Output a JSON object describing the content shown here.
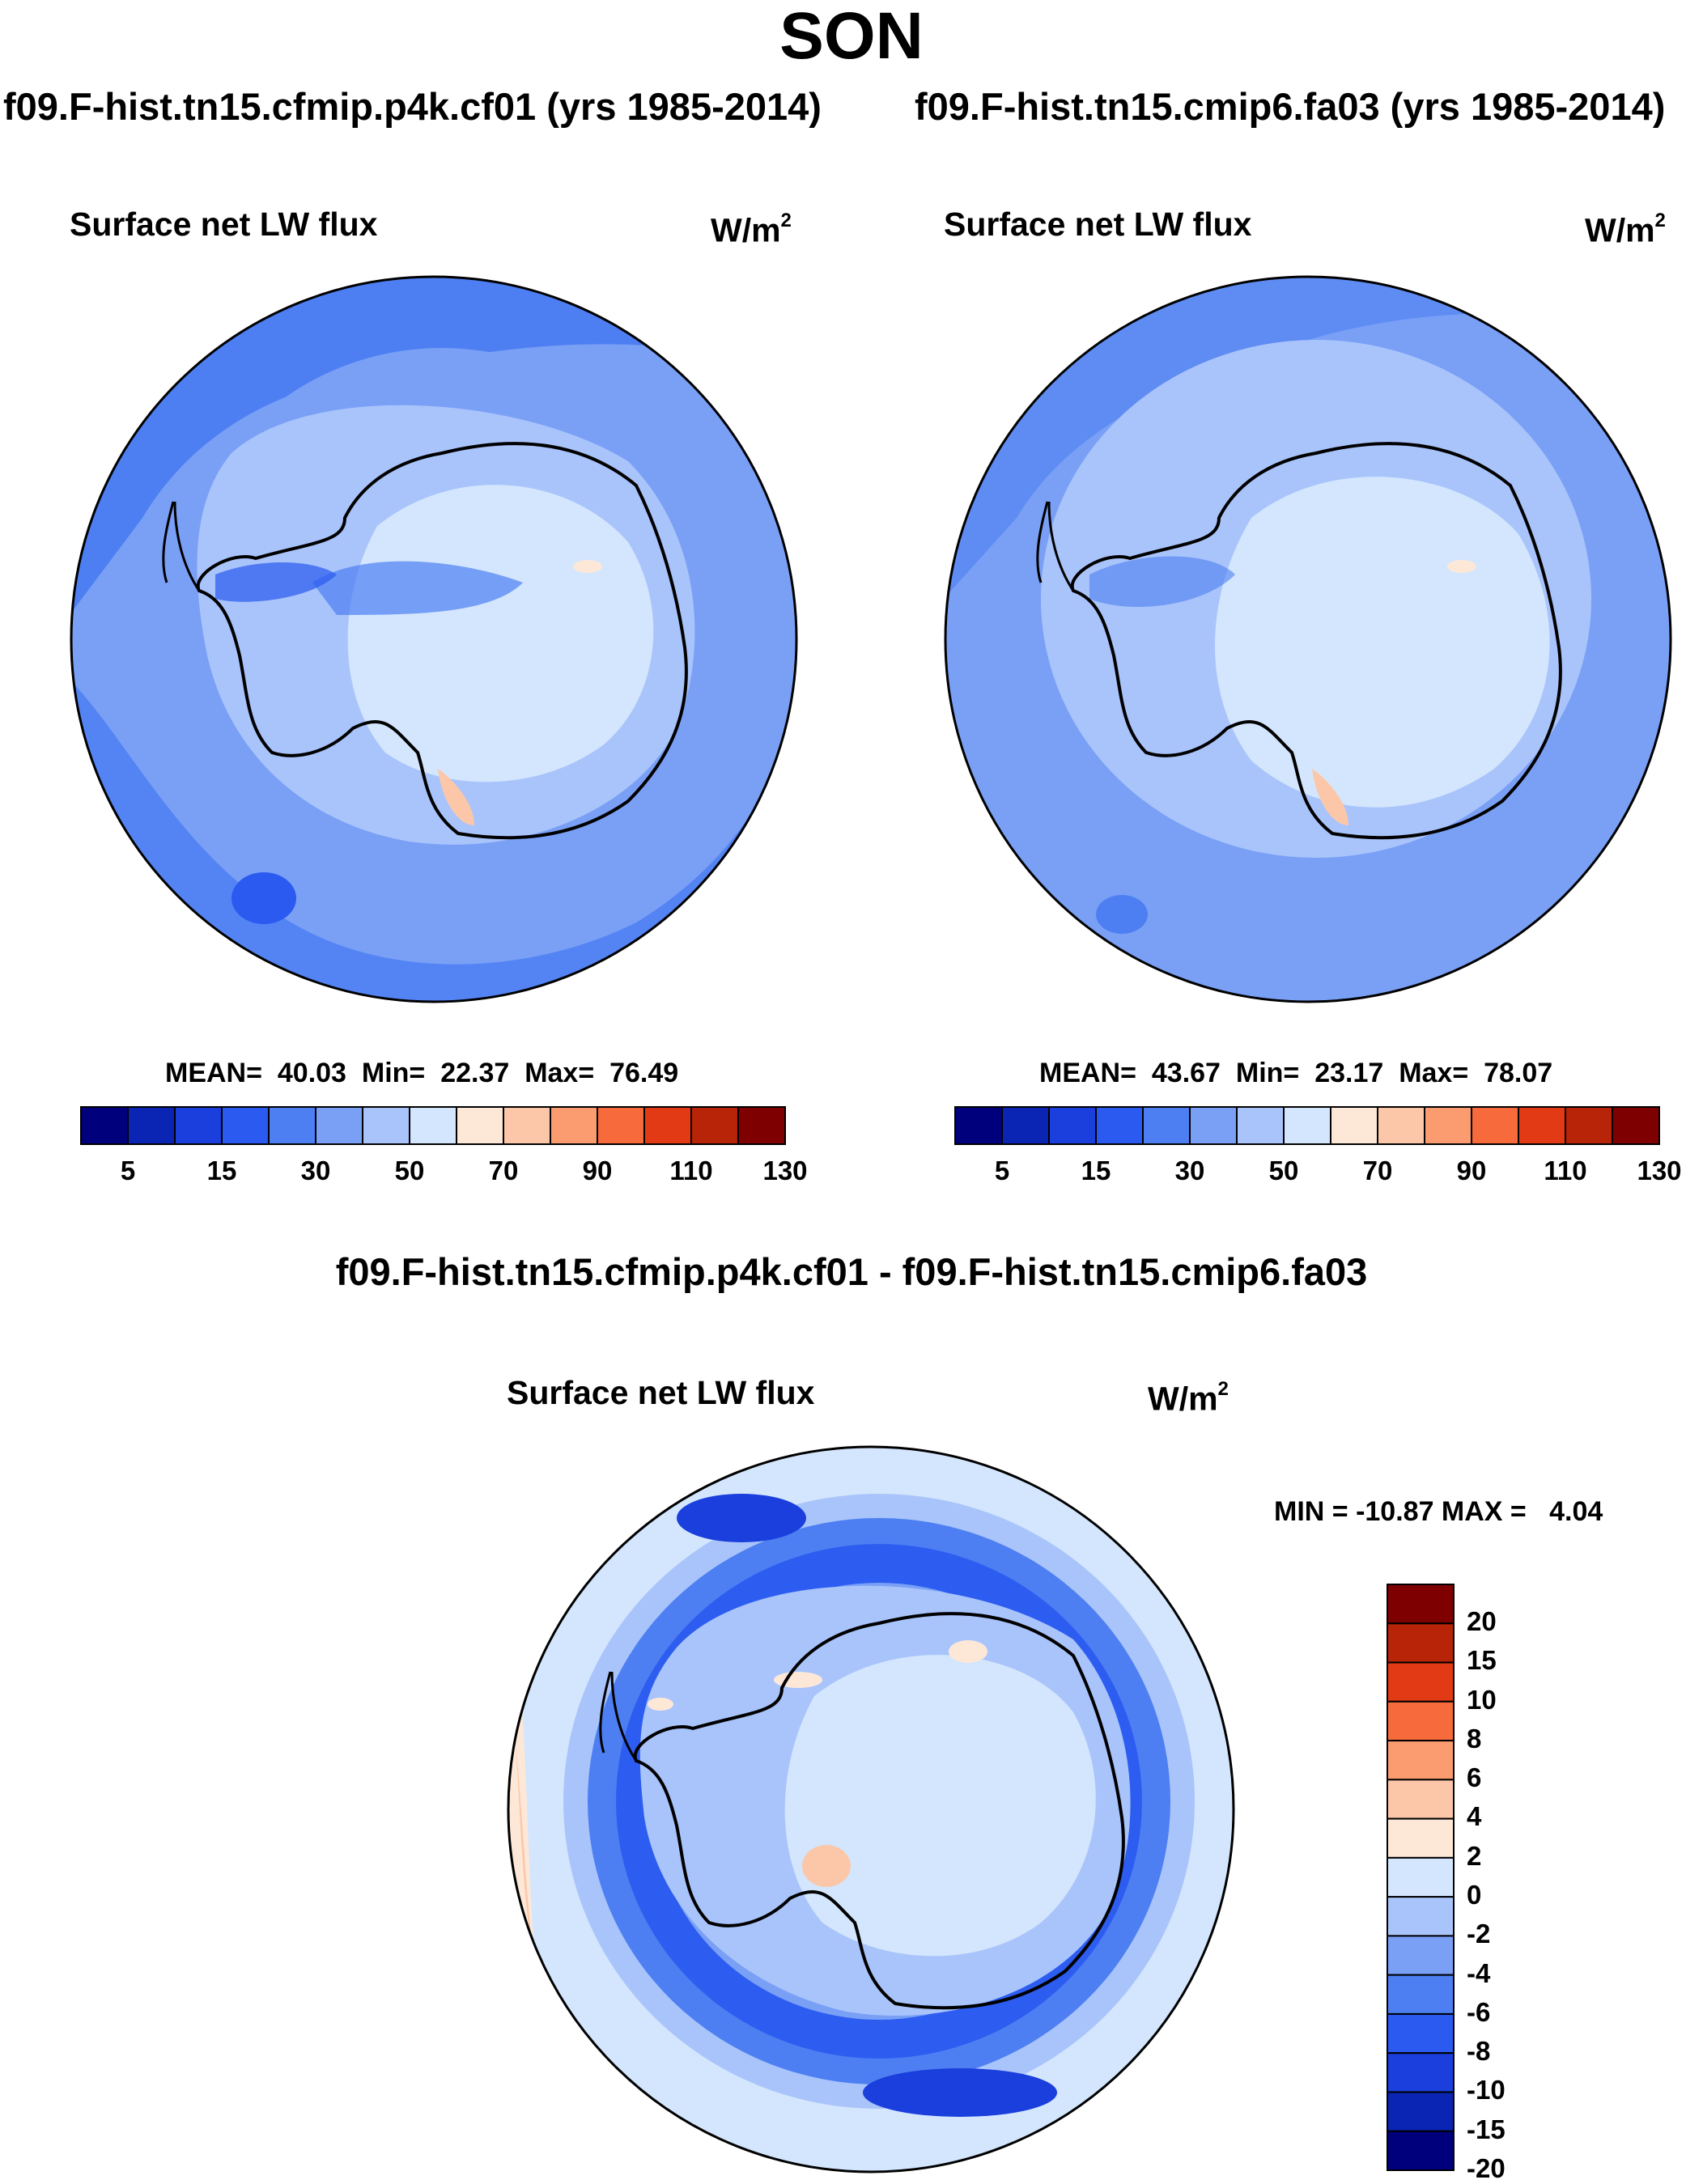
{
  "figure": {
    "season": "SON",
    "diff_title": "f09.F-hist.tn15.cfmip.p4k.cf01 - f09.F-hist.tn15.cmip6.fa03"
  },
  "panels": [
    {
      "case_title": "f09.F-hist.tn15.cfmip.p4k.cf01 (yrs 1985-2014)",
      "variable": "Surface net LW flux",
      "units_base": "W/m",
      "units_exp": "2",
      "stats": {
        "mean_label": "MEAN=",
        "mean": "40.03",
        "min_label": "Min=",
        "min": "22.37",
        "max_label": "Max=",
        "max": "76.49"
      }
    },
    {
      "case_title": "f09.F-hist.tn15.cmip6.fa03 (yrs 1985-2014)",
      "variable": "Surface net LW flux",
      "units_base": "W/m",
      "units_exp": "2",
      "stats": {
        "mean_label": "MEAN=",
        "mean": "43.67",
        "min_label": "Min=",
        "min": "23.17",
        "max_label": "Max=",
        "max": "78.07"
      }
    }
  ],
  "diff_panel": {
    "variable": "Surface net LW flux",
    "units_base": "W/m",
    "units_exp": "2",
    "stats_text": "MIN = -10.87 MAX =   4.04"
  },
  "colorbar_abs": {
    "colors": [
      "#00007c",
      "#0a24b4",
      "#1a3fdc",
      "#2a5af0",
      "#4d7ff2",
      "#7aa0f6",
      "#a9c4fb",
      "#d3e6fd",
      "#fde8d8",
      "#fcc7a9",
      "#fa9c70",
      "#f76a3c",
      "#e23a14",
      "#b82408",
      "#7e0000"
    ],
    "tick_labels": [
      "5",
      "15",
      "30",
      "50",
      "70",
      "90",
      "110",
      "130"
    ]
  },
  "colorbar_diff": {
    "colors": [
      "#7e0000",
      "#b82408",
      "#e23a14",
      "#f76a3c",
      "#fa9c70",
      "#fcc7a9",
      "#fde8d8",
      "#d3e6fd",
      "#a9c4fb",
      "#7aa0f6",
      "#4d7ff2",
      "#2a5af0",
      "#1a3fdc",
      "#0a24b4",
      "#00007c"
    ],
    "tick_labels": [
      "20",
      "15",
      "10",
      "8",
      "6",
      "4",
      "2",
      "0",
      "-2",
      "-4",
      "-6",
      "-8",
      "-10",
      "-15",
      "-20"
    ]
  }
}
